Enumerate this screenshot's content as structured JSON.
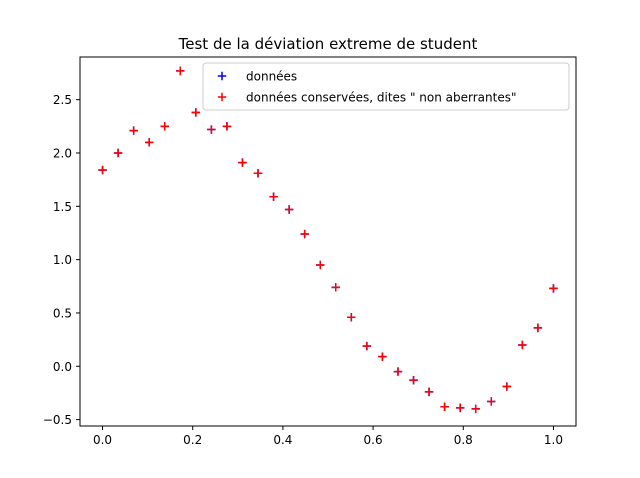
{
  "chart_data": {
    "type": "scatter",
    "title": "Test de la déviation extreme de student",
    "xlabel": "",
    "ylabel": "",
    "xlim": [
      -0.05,
      1.05
    ],
    "ylim": [
      -0.56,
      2.9
    ],
    "xticks": [
      0.0,
      0.2,
      0.4,
      0.6,
      0.8,
      1.0
    ],
    "xtick_labels": [
      "0.0",
      "0.2",
      "0.4",
      "0.6",
      "0.8",
      "1.0"
    ],
    "yticks": [
      -0.5,
      0.0,
      0.5,
      1.0,
      1.5,
      2.0,
      2.5
    ],
    "ytick_labels": [
      "−0.5",
      "0.0",
      "0.5",
      "1.0",
      "1.5",
      "2.0",
      "2.5"
    ],
    "grid": false,
    "legend_position": "top-right",
    "marker": "+",
    "series": [
      {
        "name": "données",
        "color": "#0000ff",
        "x": [
          0.0,
          0.0345,
          0.069,
          0.1034,
          0.1379,
          0.1724,
          0.2069,
          0.2414,
          0.2759,
          0.3103,
          0.3448,
          0.3793,
          0.4138,
          0.4483,
          0.4828,
          0.5172,
          0.5517,
          0.5862,
          0.6207,
          0.6552,
          0.6897,
          0.7241,
          0.7586,
          0.7931,
          0.8276,
          0.8621,
          0.8966,
          0.931,
          0.9655,
          1.0
        ],
        "y": [
          1.84,
          2.0,
          2.21,
          2.1,
          2.25,
          2.77,
          2.38,
          2.22,
          2.25,
          1.91,
          1.81,
          1.59,
          1.47,
          1.24,
          0.95,
          0.74,
          0.46,
          0.19,
          0.09,
          -0.05,
          -0.13,
          -0.24,
          -0.38,
          -0.39,
          -0.4,
          -0.33,
          -0.19,
          0.2,
          0.36,
          0.73
        ]
      },
      {
        "name": "données conservées, dites \" non aberrantes\"",
        "color": "#ff0000",
        "x": [
          0.0,
          0.0345,
          0.069,
          0.1034,
          0.1379,
          0.1724,
          0.2069,
          0.2414,
          0.2759,
          0.3103,
          0.3448,
          0.3793,
          0.4138,
          0.4483,
          0.4828,
          0.5172,
          0.5517,
          0.5862,
          0.6207,
          0.6552,
          0.6897,
          0.7241,
          0.7586,
          0.7931,
          0.8276,
          0.8621,
          0.8966,
          0.931,
          0.9655,
          1.0
        ],
        "y": [
          1.84,
          2.0,
          2.21,
          2.1,
          2.25,
          2.77,
          2.38,
          2.22,
          2.25,
          1.91,
          1.81,
          1.59,
          1.47,
          1.24,
          0.95,
          0.74,
          0.46,
          0.19,
          0.09,
          -0.05,
          -0.13,
          -0.24,
          -0.38,
          -0.39,
          -0.4,
          -0.33,
          -0.19,
          0.2,
          0.36,
          0.73
        ]
      }
    ]
  }
}
